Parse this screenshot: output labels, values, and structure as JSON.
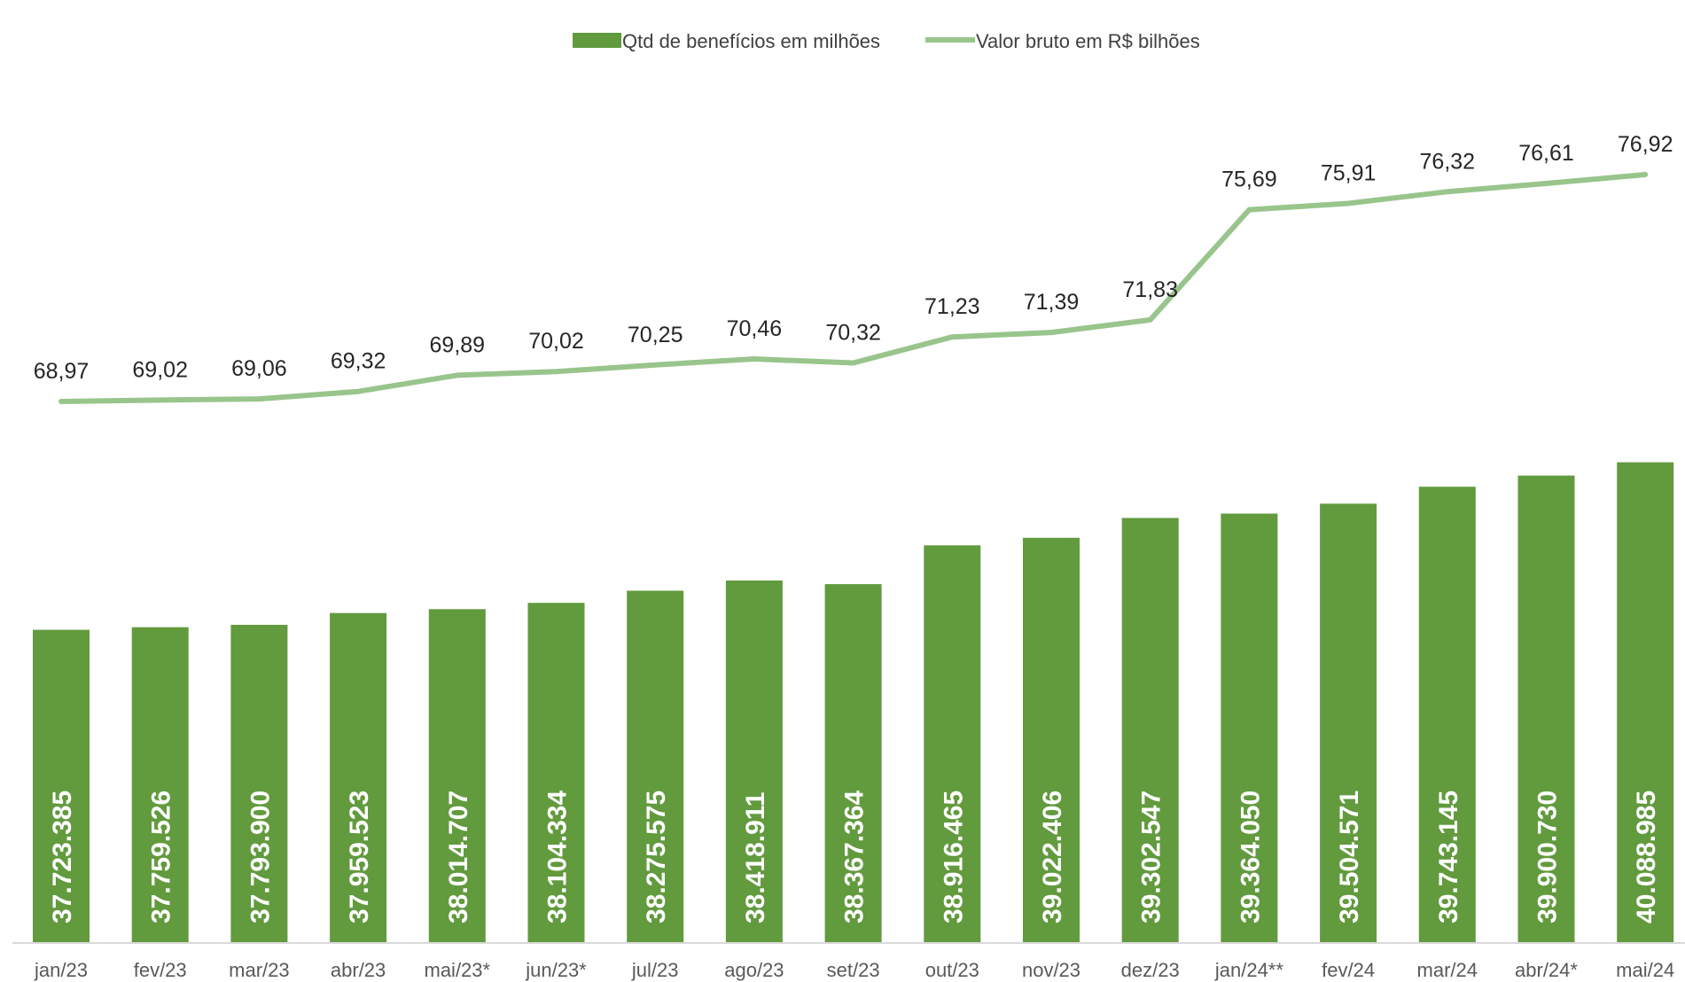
{
  "chart_data": {
    "type": "bar",
    "categories": [
      "jan/23",
      "fev/23",
      "mar/23",
      "abr/23",
      "mai/23*",
      "jun/23*",
      "jul/23",
      "ago/23",
      "set/23",
      "out/23",
      "nov/23",
      "dez/23",
      "jan/24**",
      "fev/24",
      "mar/24",
      "abr/24*",
      "mai/24"
    ],
    "series": [
      {
        "name": "Qtd de benefícios em milhões",
        "type": "bar",
        "color": "#629A3E",
        "values": [
          37723385,
          37759526,
          37793900,
          37959523,
          38014707,
          38104334,
          38275575,
          38418911,
          38367364,
          38916465,
          39022406,
          39302547,
          39364050,
          39504571,
          39743145,
          39900730,
          40088985
        ],
        "labels": [
          "37.723.385",
          "37.759.526",
          "37.793.900",
          "37.959.523",
          "38.014.707",
          "38.104.334",
          "38.275.575",
          "38.418.911",
          "38.367.364",
          "38.916.465",
          "39.022.406",
          "39.302.547",
          "39.364.050",
          "39.504.571",
          "39.743.145",
          "39.900.730",
          "40.088.985"
        ]
      },
      {
        "name": "Valor bruto em R$ bilhões",
        "type": "line",
        "color": "#99C58C",
        "values": [
          68.97,
          69.02,
          69.06,
          69.32,
          69.89,
          70.02,
          70.25,
          70.46,
          70.32,
          71.23,
          71.39,
          71.83,
          75.69,
          75.91,
          76.32,
          76.61,
          76.92
        ],
        "labels": [
          "68,97",
          "69,02",
          "69,06",
          "69,32",
          "69,89",
          "70,02",
          "70,25",
          "70,46",
          "70,32",
          "71,23",
          "71,39",
          "71,83",
          "75,69",
          "75,91",
          "76,32",
          "76,61",
          "76,92"
        ]
      }
    ],
    "legend_position": "top-center",
    "grid": false
  }
}
